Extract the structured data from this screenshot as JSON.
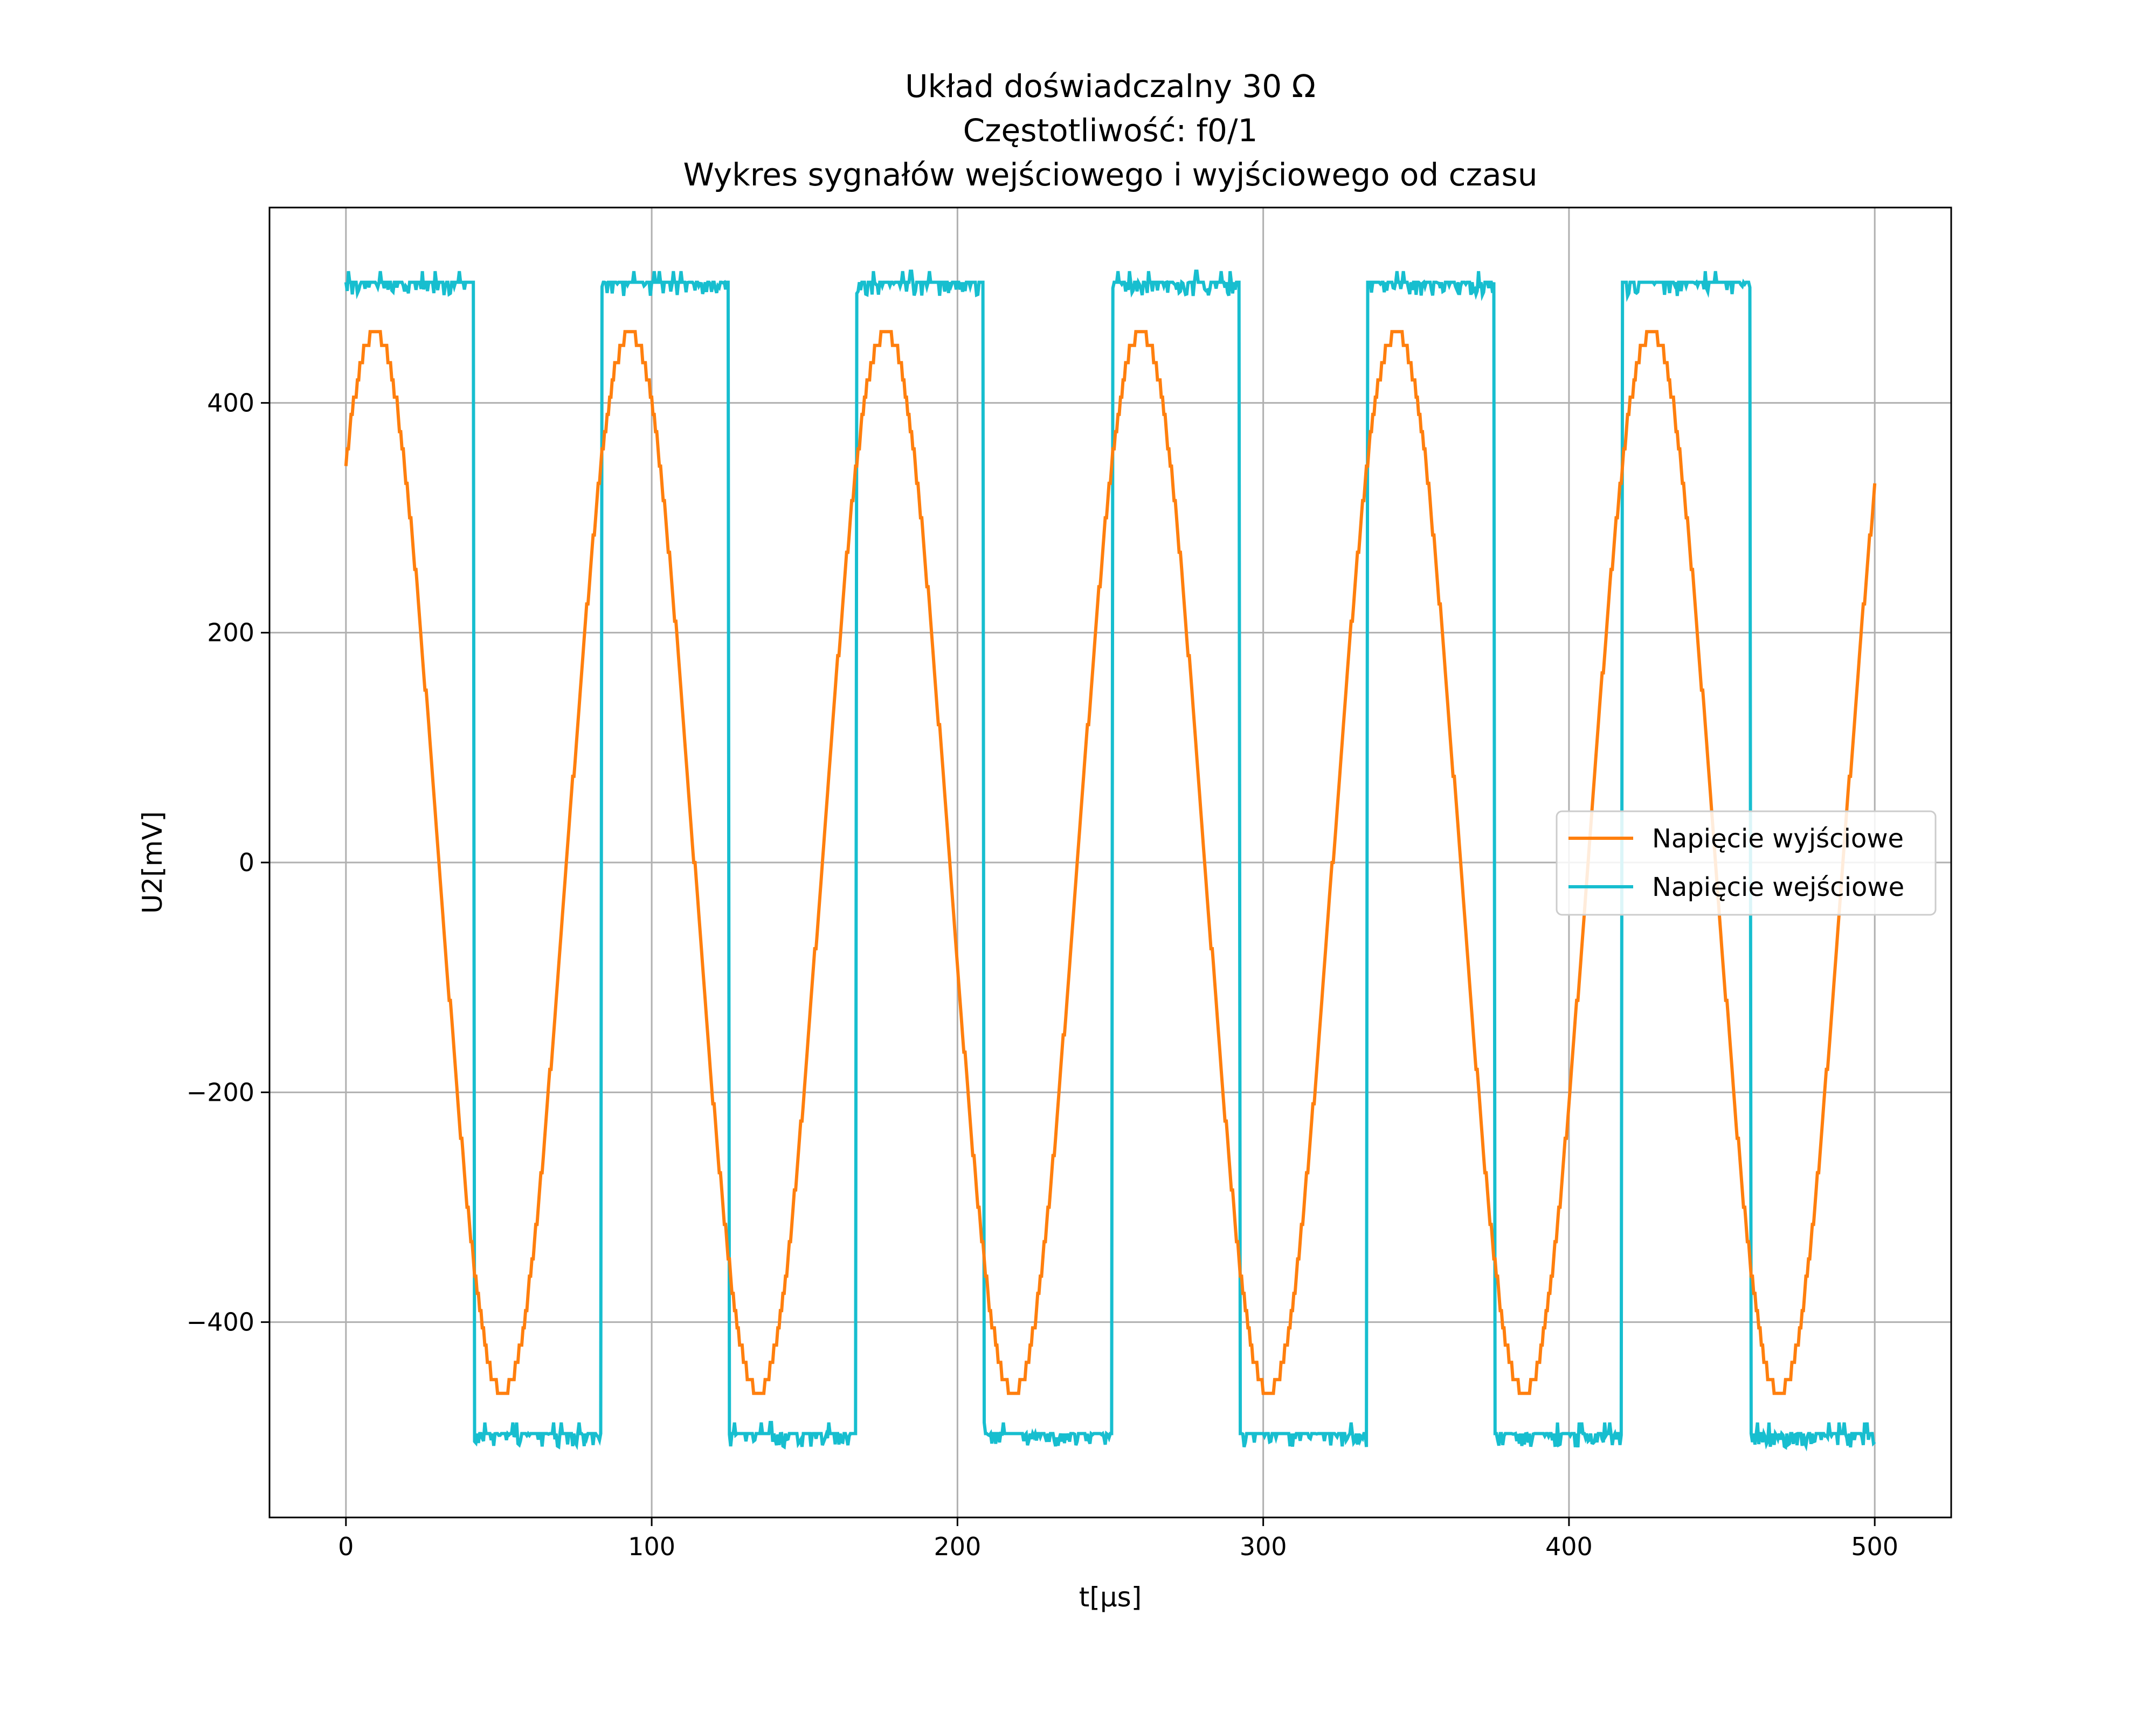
{
  "chart_data": {
    "type": "line",
    "title_lines": [
      "Układ doświadczalny 30 Ω",
      "Częstotliwość: f0/1",
      "Wykres sygnałów wejściowego i wyjściowego od czasu"
    ],
    "xlabel": "t[μs]",
    "ylabel": "U2[mV]",
    "xlim": [
      -25,
      525
    ],
    "ylim": [
      -570,
      570
    ],
    "x_ticks": [
      0,
      100,
      200,
      300,
      400,
      500
    ],
    "y_ticks": [
      -400,
      -200,
      0,
      200,
      400
    ],
    "x_tick_labels": [
      "0",
      "100",
      "200",
      "300",
      "400",
      "500"
    ],
    "y_tick_labels": [
      "−400",
      "−200",
      "0",
      "200",
      "400"
    ],
    "grid": true,
    "legend_position": "center-right",
    "x_range": [
      0,
      500
    ],
    "series": [
      {
        "name": "Napięcie wyjściowe",
        "color": "#ff7f0e",
        "waveform": "sine",
        "amplitude": 462,
        "period": 83.5,
        "phase_shift": 0.85,
        "quantization_step": 15
      },
      {
        "name": "Napięcie wejściowe",
        "color": "#17becf",
        "waveform": "square",
        "high": 505,
        "low": -497,
        "period": 83.5,
        "duty": 0.5,
        "noise": 12
      }
    ]
  }
}
